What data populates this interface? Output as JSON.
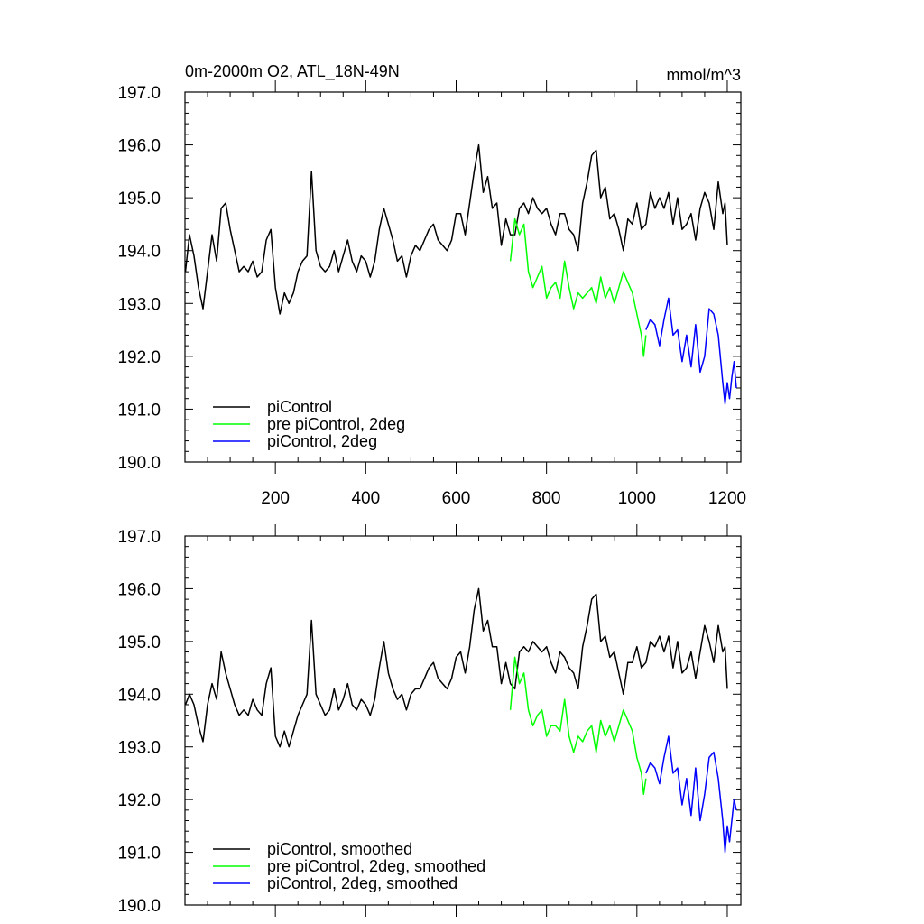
{
  "chart_data": [
    {
      "type": "line",
      "title": "0m-2000m O2, ATL_18N-49N",
      "units": "mmol/m^3",
      "xlim": [
        0,
        1230
      ],
      "ylim": [
        190,
        197
      ],
      "xticks": [
        200,
        400,
        600,
        800,
        1000,
        1200
      ],
      "yticks": [
        "190.0",
        "191.0",
        "192.0",
        "193.0",
        "194.0",
        "195.0",
        "196.0",
        "197.0"
      ],
      "legend_position": "bottom-left",
      "series": [
        {
          "name": "piControl",
          "color": "#000000",
          "x": [
            1,
            10,
            20,
            30,
            40,
            50,
            60,
            70,
            80,
            90,
            100,
            110,
            120,
            130,
            140,
            150,
            160,
            170,
            180,
            190,
            200,
            210,
            220,
            230,
            240,
            250,
            260,
            270,
            280,
            290,
            300,
            310,
            320,
            330,
            340,
            350,
            360,
            370,
            380,
            390,
            400,
            410,
            420,
            430,
            440,
            450,
            460,
            470,
            480,
            490,
            500,
            510,
            520,
            530,
            540,
            550,
            560,
            570,
            580,
            590,
            600,
            610,
            620,
            630,
            640,
            650,
            660,
            670,
            680,
            690,
            700,
            710,
            720,
            730,
            740,
            750,
            760,
            770,
            780,
            790,
            800,
            810,
            820,
            830,
            840,
            850,
            860,
            870,
            880,
            890,
            900,
            910,
            920,
            930,
            940,
            950,
            960,
            970,
            980,
            990,
            1000,
            1010,
            1020,
            1030,
            1040,
            1050,
            1060,
            1070,
            1080,
            1090,
            1100,
            1110,
            1120,
            1130,
            1140,
            1150,
            1160,
            1170,
            1180,
            1190,
            1195,
            1200
          ],
          "y": [
            193.6,
            194.3,
            193.9,
            193.3,
            192.9,
            193.6,
            194.3,
            193.8,
            194.8,
            194.9,
            194.4,
            194.0,
            193.6,
            193.7,
            193.6,
            193.8,
            193.5,
            193.6,
            194.2,
            194.4,
            193.3,
            192.8,
            193.2,
            193.0,
            193.2,
            193.6,
            193.8,
            193.9,
            195.5,
            194.0,
            193.7,
            193.6,
            193.7,
            194.0,
            193.6,
            193.9,
            194.2,
            193.8,
            193.6,
            193.9,
            193.8,
            193.5,
            193.8,
            194.4,
            194.8,
            194.5,
            194.2,
            193.8,
            193.9,
            193.5,
            193.9,
            194.1,
            194.0,
            194.2,
            194.4,
            194.5,
            194.2,
            194.1,
            194.0,
            194.2,
            194.7,
            194.7,
            194.3,
            194.9,
            195.5,
            196.0,
            195.1,
            195.4,
            194.8,
            194.9,
            194.1,
            194.6,
            194.3,
            194.3,
            194.8,
            194.9,
            194.7,
            195.0,
            194.8,
            194.7,
            194.8,
            194.5,
            194.3,
            194.7,
            194.7,
            194.4,
            194.3,
            194.0,
            194.9,
            195.3,
            195.8,
            195.9,
            195.0,
            195.2,
            194.6,
            194.7,
            194.4,
            194.0,
            194.6,
            194.5,
            194.9,
            194.4,
            194.5,
            195.1,
            194.8,
            195.0,
            194.8,
            195.1,
            194.5,
            195.0,
            194.4,
            194.5,
            194.7,
            194.2,
            194.8,
            195.1,
            194.9,
            194.4,
            195.3,
            194.7,
            194.9,
            194.1
          ]
        },
        {
          "name": "pre piControl, 2deg",
          "color": "#00ff00",
          "x": [
            720,
            730,
            740,
            750,
            760,
            770,
            780,
            790,
            800,
            810,
            820,
            830,
            840,
            850,
            860,
            870,
            880,
            890,
            900,
            910,
            920,
            930,
            940,
            950,
            960,
            970,
            980,
            990,
            1000,
            1010,
            1015,
            1020
          ],
          "y": [
            193.8,
            194.6,
            194.3,
            194.5,
            193.6,
            193.3,
            193.5,
            193.7,
            193.1,
            193.3,
            193.4,
            193.1,
            193.8,
            193.3,
            192.9,
            193.2,
            193.1,
            193.2,
            193.3,
            193.0,
            193.5,
            193.1,
            193.3,
            193.0,
            193.3,
            193.6,
            193.4,
            193.2,
            192.8,
            192.4,
            192.0,
            192.4
          ]
        },
        {
          "name": "piControl, 2deg",
          "color": "#0000ff",
          "x": [
            1020,
            1030,
            1040,
            1050,
            1060,
            1070,
            1080,
            1090,
            1100,
            1110,
            1120,
            1130,
            1140,
            1150,
            1160,
            1170,
            1180,
            1190,
            1195,
            1200,
            1205,
            1210,
            1215,
            1220
          ],
          "y": [
            192.5,
            192.7,
            192.6,
            192.2,
            192.7,
            193.1,
            192.4,
            192.5,
            191.9,
            192.4,
            191.8,
            192.6,
            191.7,
            192.0,
            192.9,
            192.8,
            192.4,
            191.5,
            191.1,
            191.5,
            191.2,
            191.6,
            191.9,
            191.4
          ]
        }
      ]
    },
    {
      "type": "line",
      "xlim": [
        0,
        1230
      ],
      "ylim": [
        190,
        197
      ],
      "yticks": [
        "190.0",
        "191.0",
        "192.0",
        "193.0",
        "194.0",
        "195.0",
        "196.0",
        "197.0"
      ],
      "legend_position": "bottom-left",
      "series": [
        {
          "name": "piControl, smoothed",
          "color": "#000000",
          "x": [
            1,
            10,
            20,
            30,
            40,
            50,
            60,
            70,
            80,
            90,
            100,
            110,
            120,
            130,
            140,
            150,
            160,
            170,
            180,
            190,
            200,
            210,
            220,
            230,
            240,
            250,
            260,
            270,
            280,
            290,
            300,
            310,
            320,
            330,
            340,
            350,
            360,
            370,
            380,
            390,
            400,
            410,
            420,
            430,
            440,
            450,
            460,
            470,
            480,
            490,
            500,
            510,
            520,
            530,
            540,
            550,
            560,
            570,
            580,
            590,
            600,
            610,
            620,
            630,
            640,
            650,
            660,
            670,
            680,
            690,
            700,
            710,
            720,
            730,
            740,
            750,
            760,
            770,
            780,
            790,
            800,
            810,
            820,
            830,
            840,
            850,
            860,
            870,
            880,
            890,
            900,
            910,
            920,
            930,
            940,
            950,
            960,
            970,
            980,
            990,
            1000,
            1010,
            1020,
            1030,
            1040,
            1050,
            1060,
            1070,
            1080,
            1090,
            1100,
            1110,
            1120,
            1130,
            1140,
            1150,
            1160,
            1170,
            1180,
            1190,
            1195,
            1200
          ],
          "y": [
            193.8,
            194.0,
            193.8,
            193.4,
            193.1,
            193.8,
            194.2,
            193.9,
            194.8,
            194.4,
            194.1,
            193.8,
            193.6,
            193.7,
            193.6,
            193.9,
            193.7,
            193.6,
            194.2,
            194.5,
            193.2,
            193.0,
            193.3,
            193.0,
            193.3,
            193.6,
            193.8,
            194.0,
            195.4,
            194.0,
            193.8,
            193.6,
            193.7,
            194.1,
            193.7,
            193.9,
            194.2,
            193.8,
            193.7,
            193.9,
            193.8,
            193.6,
            193.9,
            194.5,
            195.0,
            194.4,
            194.1,
            193.9,
            194.0,
            193.7,
            194.0,
            194.1,
            194.1,
            194.3,
            194.5,
            194.6,
            194.3,
            194.2,
            194.1,
            194.3,
            194.7,
            194.8,
            194.4,
            194.9,
            195.6,
            196.0,
            195.2,
            195.4,
            194.9,
            194.9,
            194.2,
            194.6,
            194.2,
            194.1,
            194.8,
            194.9,
            194.8,
            195.0,
            194.9,
            194.8,
            194.9,
            194.6,
            194.4,
            194.8,
            194.7,
            194.5,
            194.4,
            194.1,
            194.9,
            195.3,
            195.8,
            195.9,
            195.0,
            195.1,
            194.7,
            194.8,
            194.4,
            194.0,
            194.6,
            194.6,
            194.9,
            194.5,
            194.6,
            195.0,
            194.9,
            195.1,
            194.8,
            195.1,
            194.5,
            195.0,
            194.4,
            194.5,
            194.8,
            194.3,
            194.8,
            195.3,
            195.0,
            194.6,
            195.3,
            194.8,
            194.9,
            194.1
          ]
        },
        {
          "name": "pre piControl, 2deg, smoothed",
          "color": "#00ff00",
          "x": [
            720,
            730,
            740,
            750,
            760,
            770,
            780,
            790,
            800,
            810,
            820,
            830,
            840,
            850,
            860,
            870,
            880,
            890,
            900,
            910,
            920,
            930,
            940,
            950,
            960,
            970,
            980,
            990,
            1000,
            1010,
            1015,
            1020
          ],
          "y": [
            193.7,
            194.7,
            194.2,
            194.4,
            193.7,
            193.4,
            193.6,
            193.7,
            193.2,
            193.4,
            193.4,
            193.3,
            193.9,
            193.2,
            192.9,
            193.2,
            193.1,
            193.3,
            193.4,
            192.9,
            193.5,
            193.2,
            193.4,
            193.1,
            193.4,
            193.7,
            193.5,
            193.3,
            192.8,
            192.5,
            192.1,
            192.4
          ]
        },
        {
          "name": "piControl, 2deg, smoothed",
          "color": "#0000ff",
          "x": [
            1020,
            1030,
            1040,
            1050,
            1060,
            1070,
            1080,
            1090,
            1100,
            1110,
            1120,
            1130,
            1140,
            1150,
            1160,
            1170,
            1180,
            1190,
            1195,
            1200,
            1205,
            1210,
            1215,
            1220
          ],
          "y": [
            192.5,
            192.7,
            192.6,
            192.3,
            192.8,
            193.2,
            192.5,
            192.6,
            191.9,
            192.4,
            191.7,
            192.6,
            191.6,
            192.1,
            192.8,
            192.9,
            192.4,
            191.6,
            191.0,
            191.5,
            191.2,
            191.6,
            192.0,
            191.8
          ]
        }
      ]
    }
  ]
}
